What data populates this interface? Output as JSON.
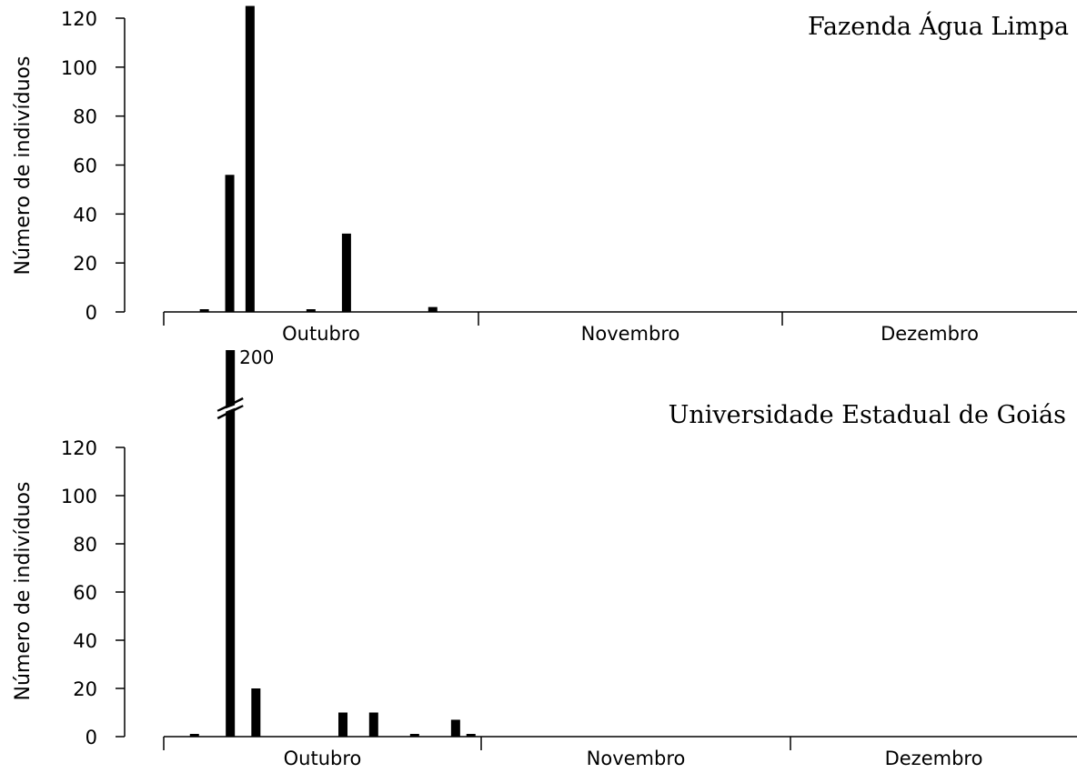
{
  "chart_data": [
    {
      "type": "bar",
      "title": "Fazenda Água Limpa",
      "ylabel": "Número de indivíduos",
      "ylim": [
        0,
        120
      ],
      "yticks": [
        0,
        20,
        40,
        60,
        80,
        100,
        120
      ],
      "months": [
        "Outubro",
        "Novembro",
        "Dezembro"
      ],
      "bars": [
        {
          "day": 4,
          "value": 1
        },
        {
          "day": 6.5,
          "value": 56
        },
        {
          "day": 8.5,
          "value": 125
        },
        {
          "day": 14.5,
          "value": 1
        },
        {
          "day": 18,
          "value": 32
        },
        {
          "day": 26.5,
          "value": 2
        }
      ],
      "annotations": []
    },
    {
      "type": "bar",
      "title": "Universidade Estadual de Goiás",
      "ylabel": "Número de indivíduos",
      "ylim": [
        0,
        120
      ],
      "yticks": [
        0,
        20,
        40,
        60,
        80,
        100,
        120
      ],
      "axis_break": true,
      "months": [
        "Outubro",
        "Novembro",
        "Dezembro"
      ],
      "bars": [
        {
          "day": 3,
          "value": 1
        },
        {
          "day": 6.5,
          "value": 200
        },
        {
          "day": 9,
          "value": 20
        },
        {
          "day": 17.5,
          "value": 10
        },
        {
          "day": 20.5,
          "value": 10
        },
        {
          "day": 24.5,
          "value": 1
        },
        {
          "day": 28.5,
          "value": 7
        },
        {
          "day": 30,
          "value": 1
        }
      ],
      "annotations": [
        {
          "text": "200"
        }
      ]
    }
  ]
}
